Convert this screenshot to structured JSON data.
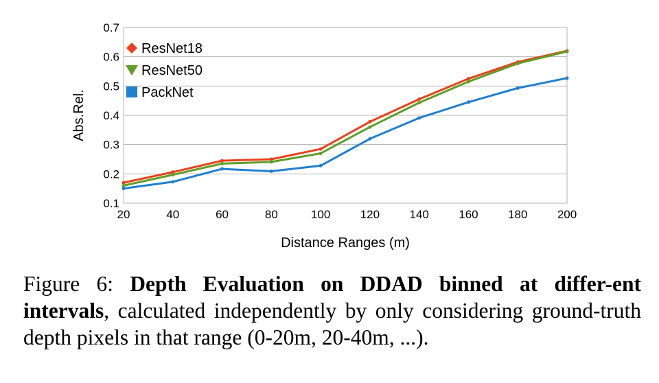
{
  "chart_data": {
    "type": "line",
    "x": [
      20,
      40,
      60,
      80,
      100,
      120,
      140,
      160,
      180,
      200
    ],
    "xlabel": "Distance Ranges (m)",
    "ylabel": "Abs.Rel.",
    "xlim": [
      20,
      200
    ],
    "ylim": [
      0.1,
      0.7
    ],
    "yticks": [
      "0.1",
      "0.2",
      "0.3",
      "0.4",
      "0.5",
      "0.6",
      "0.7"
    ],
    "xticks": [
      "20",
      "40",
      "60",
      "80",
      "100",
      "120",
      "140",
      "160",
      "180",
      "200"
    ],
    "grid": "horizontal",
    "legend_position": "top-left",
    "series": [
      {
        "name": "ResNet18",
        "color": "#e8411b",
        "marker": "diamond",
        "values": [
          0.17,
          0.206,
          0.245,
          0.25,
          0.285,
          0.378,
          0.455,
          0.525,
          0.582,
          0.62
        ]
      },
      {
        "name": "ResNet50",
        "color": "#5f9e27",
        "marker": "triangle-down",
        "values": [
          0.16,
          0.197,
          0.235,
          0.241,
          0.27,
          0.36,
          0.443,
          0.515,
          0.577,
          0.618
        ]
      },
      {
        "name": "PackNet",
        "color": "#1f7fd0",
        "marker": "square",
        "values": [
          0.15,
          0.173,
          0.217,
          0.209,
          0.228,
          0.32,
          0.391,
          0.445,
          0.493,
          0.527
        ]
      }
    ]
  },
  "caption": {
    "prefix": "Figure 6: ",
    "bold": "Depth Evaluation on DDAD binned at differ-ent intervals",
    "rest": ", calculated independently by only considering ground-truth depth pixels in that range (0-20m, 20-40m, ...)."
  }
}
